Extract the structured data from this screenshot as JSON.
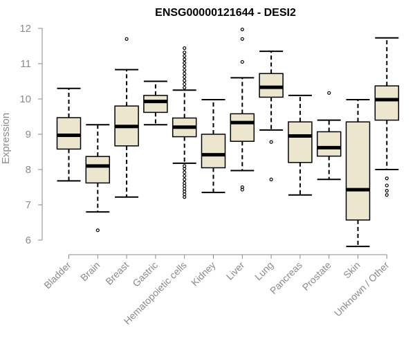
{
  "chart_data": {
    "type": "boxplot",
    "title": "ENSG00000121644 - DESI2",
    "xlabel": "",
    "ylabel": "Expression",
    "ylim": [
      5.75,
      12.1
    ],
    "yticks": [
      "6",
      "7",
      "8",
      "9",
      "10",
      "11",
      "12"
    ],
    "grid": false,
    "colors": {
      "box_fill": "#ede6cf",
      "stroke": "#000000",
      "axis": "#8a8a8a"
    },
    "categories": [
      "Bladder",
      "Brain",
      "Breast",
      "Gastric",
      "Hematopoietic cells",
      "Kidney",
      "Liver",
      "Lung",
      "Pancreas",
      "Prostate",
      "Skin",
      "Unknown / Other"
    ],
    "boxes": [
      {
        "category": "Bladder",
        "whisker_low": 7.68,
        "q1": 8.58,
        "median": 8.97,
        "q3": 9.47,
        "whisker_high": 10.3,
        "outliers": []
      },
      {
        "category": "Brain",
        "whisker_low": 6.8,
        "q1": 7.62,
        "median": 8.1,
        "q3": 8.37,
        "whisker_high": 9.27,
        "outliers": [
          6.28
        ]
      },
      {
        "category": "Breast",
        "whisker_low": 7.22,
        "q1": 8.67,
        "median": 9.22,
        "q3": 9.8,
        "whisker_high": 10.83,
        "outliers": [
          11.7
        ]
      },
      {
        "category": "Gastric",
        "whisker_low": 9.27,
        "q1": 9.62,
        "median": 9.93,
        "q3": 10.1,
        "whisker_high": 10.5,
        "outliers": []
      },
      {
        "category": "Hematopoietic cells",
        "whisker_low": 8.18,
        "q1": 8.93,
        "median": 9.2,
        "q3": 9.46,
        "whisker_high": 10.25,
        "outliers": [
          7.22,
          7.3,
          7.38,
          7.46,
          7.54,
          7.62,
          7.72,
          7.82,
          7.92,
          8.02,
          8.1,
          10.32,
          10.42,
          10.52,
          10.62,
          10.72,
          10.82,
          10.92,
          11.02,
          11.12,
          11.22,
          11.32,
          11.44
        ]
      },
      {
        "category": "Kidney",
        "whisker_low": 7.35,
        "q1": 8.05,
        "median": 8.42,
        "q3": 9.0,
        "whisker_high": 9.98,
        "outliers": []
      },
      {
        "category": "Liver",
        "whisker_low": 7.97,
        "q1": 8.8,
        "median": 9.33,
        "q3": 9.58,
        "whisker_high": 10.6,
        "outliers": [
          7.43,
          7.5,
          11.05,
          11.7,
          11.97
        ]
      },
      {
        "category": "Lung",
        "whisker_low": 9.12,
        "q1": 10.05,
        "median": 10.33,
        "q3": 10.72,
        "whisker_high": 11.35,
        "outliers": [
          8.78,
          7.72
        ]
      },
      {
        "category": "Pancreas",
        "whisker_low": 7.28,
        "q1": 8.2,
        "median": 8.95,
        "q3": 9.35,
        "whisker_high": 10.1,
        "outliers": []
      },
      {
        "category": "Prostate",
        "whisker_low": 7.72,
        "q1": 8.38,
        "median": 8.62,
        "q3": 9.07,
        "whisker_high": 9.4,
        "outliers": [
          10.17
        ]
      },
      {
        "category": "Skin",
        "whisker_low": 5.82,
        "q1": 6.57,
        "median": 7.43,
        "q3": 9.35,
        "whisker_high": 9.98,
        "outliers": []
      },
      {
        "category": "Unknown / Other",
        "whisker_low": 8.0,
        "q1": 9.4,
        "median": 9.98,
        "q3": 10.37,
        "whisker_high": 11.73,
        "outliers": [
          7.28,
          7.4,
          7.55,
          7.75
        ]
      }
    ]
  }
}
